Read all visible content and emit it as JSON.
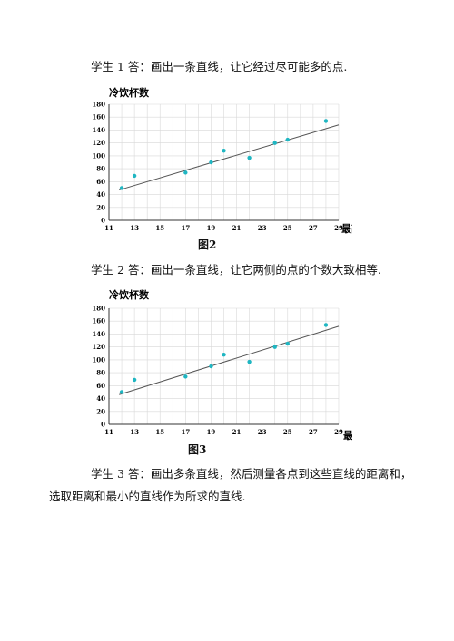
{
  "paragraphs": {
    "student1": "学生 1 答：画出一条直线，让它经过尽可能多的点.",
    "student2": "学生 2 答：画出一条直线，让它两侧的点的个数大致相等.",
    "student3_line1": "学生 3 答：画出多条直线，然后测量各点到这些直线的距离和，",
    "student3_line2": "选取距离和最小的直线作为所求的直线."
  },
  "figures": {
    "fig2_caption": "图2",
    "fig3_caption": "图3"
  },
  "colors": {
    "point": "#1fb6c2",
    "line": "#555555",
    "grid": "#d8d8d8"
  },
  "chart_data": [
    {
      "type": "scatter",
      "ylabel": "冷饮杯数",
      "xlabel": "最高气温/℃",
      "x_ticks": [
        11,
        13,
        15,
        17,
        19,
        21,
        23,
        25,
        27,
        29
      ],
      "y_ticks": [
        0,
        20,
        40,
        60,
        80,
        100,
        120,
        140,
        160,
        180
      ],
      "xlim": [
        11,
        29
      ],
      "ylim": [
        0,
        180
      ],
      "grid": true,
      "points": [
        {
          "x": 12,
          "y": 50
        },
        {
          "x": 13,
          "y": 69
        },
        {
          "x": 17,
          "y": 74
        },
        {
          "x": 19,
          "y": 90
        },
        {
          "x": 20,
          "y": 108
        },
        {
          "x": 22,
          "y": 97
        },
        {
          "x": 24,
          "y": 120
        },
        {
          "x": 25,
          "y": 125
        },
        {
          "x": 28,
          "y": 154
        }
      ],
      "line": {
        "x1": 11.8,
        "y1": 47,
        "x2": 29,
        "y2": 148
      }
    },
    {
      "type": "scatter",
      "ylabel": "冷饮杯数",
      "xlabel": "最高气温/℃",
      "x_ticks": [
        11,
        13,
        15,
        17,
        19,
        21,
        23,
        25,
        27,
        29
      ],
      "y_ticks": [
        0,
        20,
        40,
        60,
        80,
        100,
        120,
        140,
        160,
        180
      ],
      "xlim": [
        11,
        29
      ],
      "ylim": [
        0,
        180
      ],
      "grid": true,
      "points": [
        {
          "x": 12,
          "y": 50
        },
        {
          "x": 13,
          "y": 69
        },
        {
          "x": 17,
          "y": 74
        },
        {
          "x": 19,
          "y": 90
        },
        {
          "x": 20,
          "y": 108
        },
        {
          "x": 22,
          "y": 97
        },
        {
          "x": 24,
          "y": 120
        },
        {
          "x": 25,
          "y": 125
        },
        {
          "x": 28,
          "y": 154
        }
      ],
      "line": {
        "x1": 11.8,
        "y1": 46,
        "x2": 29,
        "y2": 152
      }
    }
  ]
}
